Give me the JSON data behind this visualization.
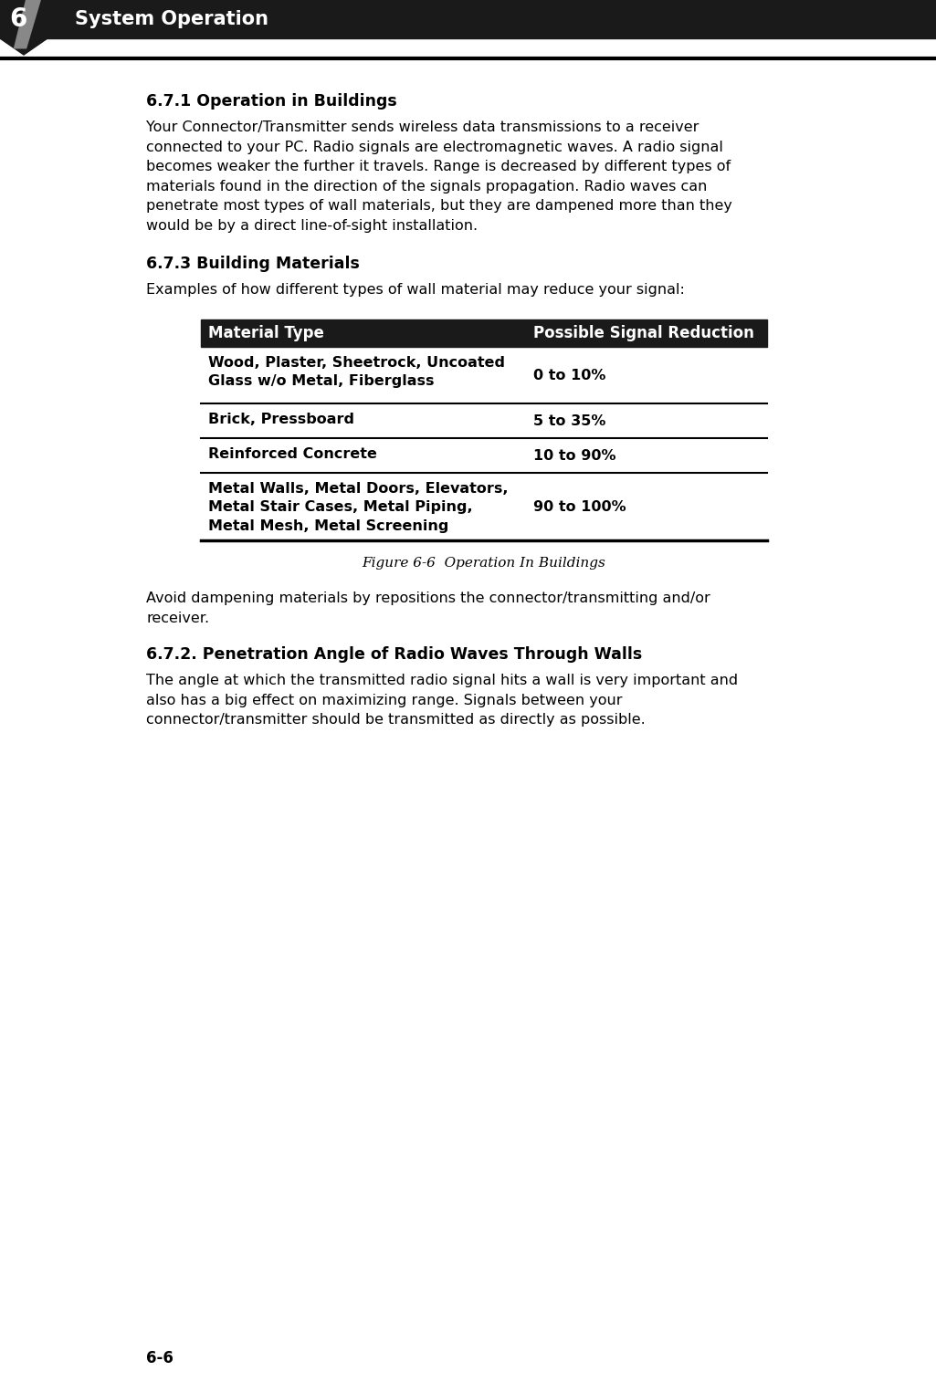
{
  "page_bg": "#ffffff",
  "header_bg": "#1a1a1a",
  "header_text_color": "#ffffff",
  "header_number": "6",
  "header_title": "System Operation",
  "footer_text": "6-6",
  "section_671_title": "6.7.1 Operation in Buildings",
  "section_671_body": "Your Connector/Transmitter sends wireless data transmissions to a receiver\nconnected to your PC. Radio signals are electromagnetic waves. A radio signal\nbecomes weaker the further it travels. Range is decreased by different types of\nmaterials found in the direction of the signals propagation. Radio waves can\npenetrate most types of wall materials, but they are dampened more than they\nwould be by a direct line-of-sight installation.",
  "section_673_title": "6.7.3 Building Materials",
  "section_673_intro": "Examples of how different types of wall material may reduce your signal:",
  "table_header_col1": "Material Type",
  "table_header_col2": "Possible Signal Reduction",
  "table_header_bg": "#1a1a1a",
  "table_header_color": "#ffffff",
  "table_rows": [
    {
      "material": "Wood, Plaster, Sheetrock, Uncoated\nGlass w/o Metal, Fiberglass",
      "reduction": "0 to 10%"
    },
    {
      "material": "Brick, Pressboard",
      "reduction": "5 to 35%"
    },
    {
      "material": "Reinforced Concrete",
      "reduction": "10 to 90%"
    },
    {
      "material": "Metal Walls, Metal Doors, Elevators,\nMetal Stair Cases, Metal Piping,\nMetal Mesh, Metal Screening",
      "reduction": "90 to 100%"
    }
  ],
  "figure_caption": "Figure 6-6  Operation In Buildings",
  "avoid_text": "Avoid dampening materials by repositions the connector/transmitting and/or\nreceiver.",
  "section_672_title": "6.7.2. Penetration Angle of Radio Waves Through Walls",
  "section_672_body": "The angle at which the transmitted radio signal hits a wall is very important and\nalso has a big effect on maximizing range. Signals between your\nconnector/transmitter should be transmitted as directly as possible.",
  "body_fontsize": 11.5,
  "heading_fontsize": 12.5,
  "table_body_fontsize": 11.5,
  "table_header_fontsize": 12,
  "caption_fontsize": 11,
  "footer_fontsize": 12
}
